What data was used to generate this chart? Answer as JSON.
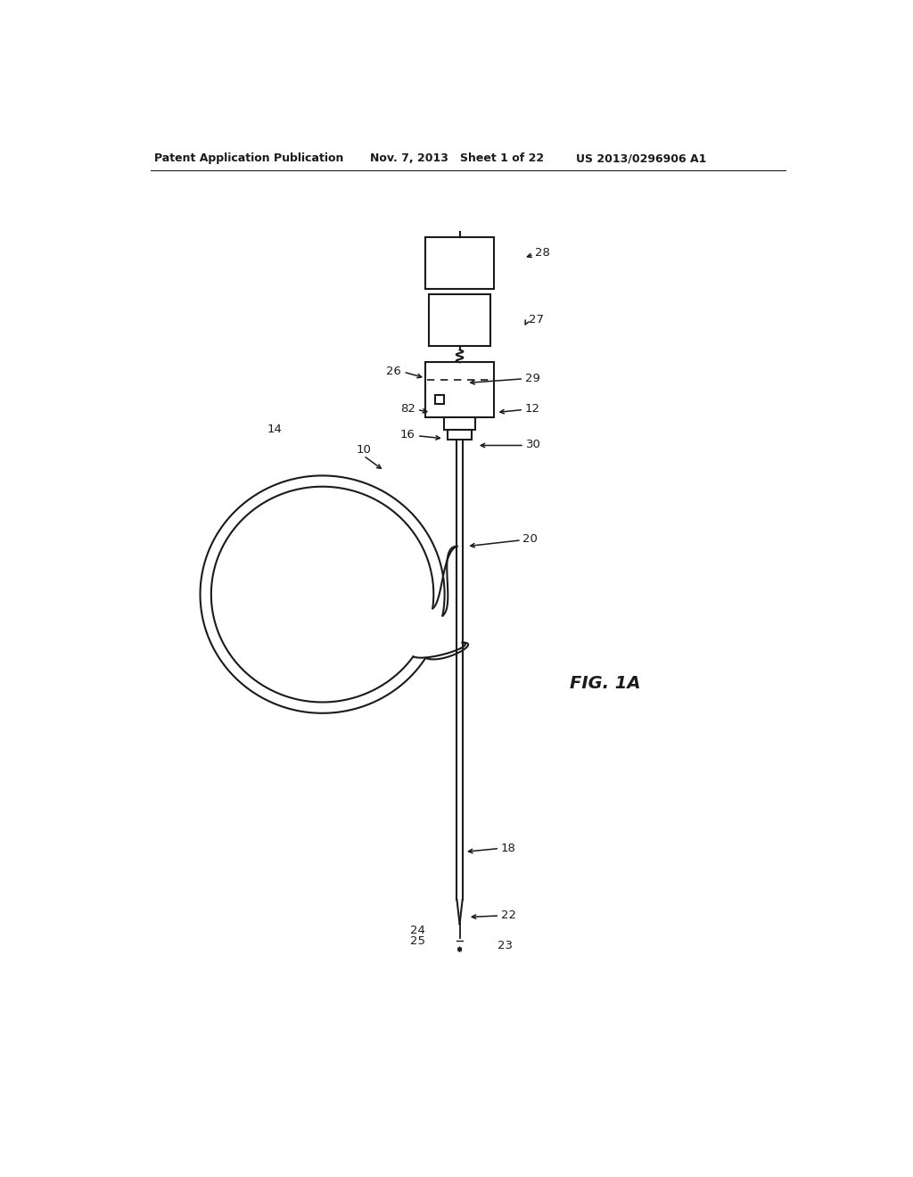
{
  "bg_color": "#ffffff",
  "line_color": "#1a1a1a",
  "header_left": "Patent Application Publication",
  "header_mid": "Nov. 7, 2013   Sheet 1 of 22",
  "header_right": "US 2013/0296906 A1",
  "fig_label": "FIG. 1A",
  "label_10": "10",
  "label_12": "12",
  "label_14": "14",
  "label_16": "16",
  "label_18": "18",
  "label_20": "20",
  "label_22": "22",
  "label_23": "23",
  "label_24": "24",
  "label_25": "25",
  "label_26": "26",
  "label_27": "27",
  "label_28": "28",
  "label_29": "29",
  "label_30": "30",
  "label_82": "82"
}
